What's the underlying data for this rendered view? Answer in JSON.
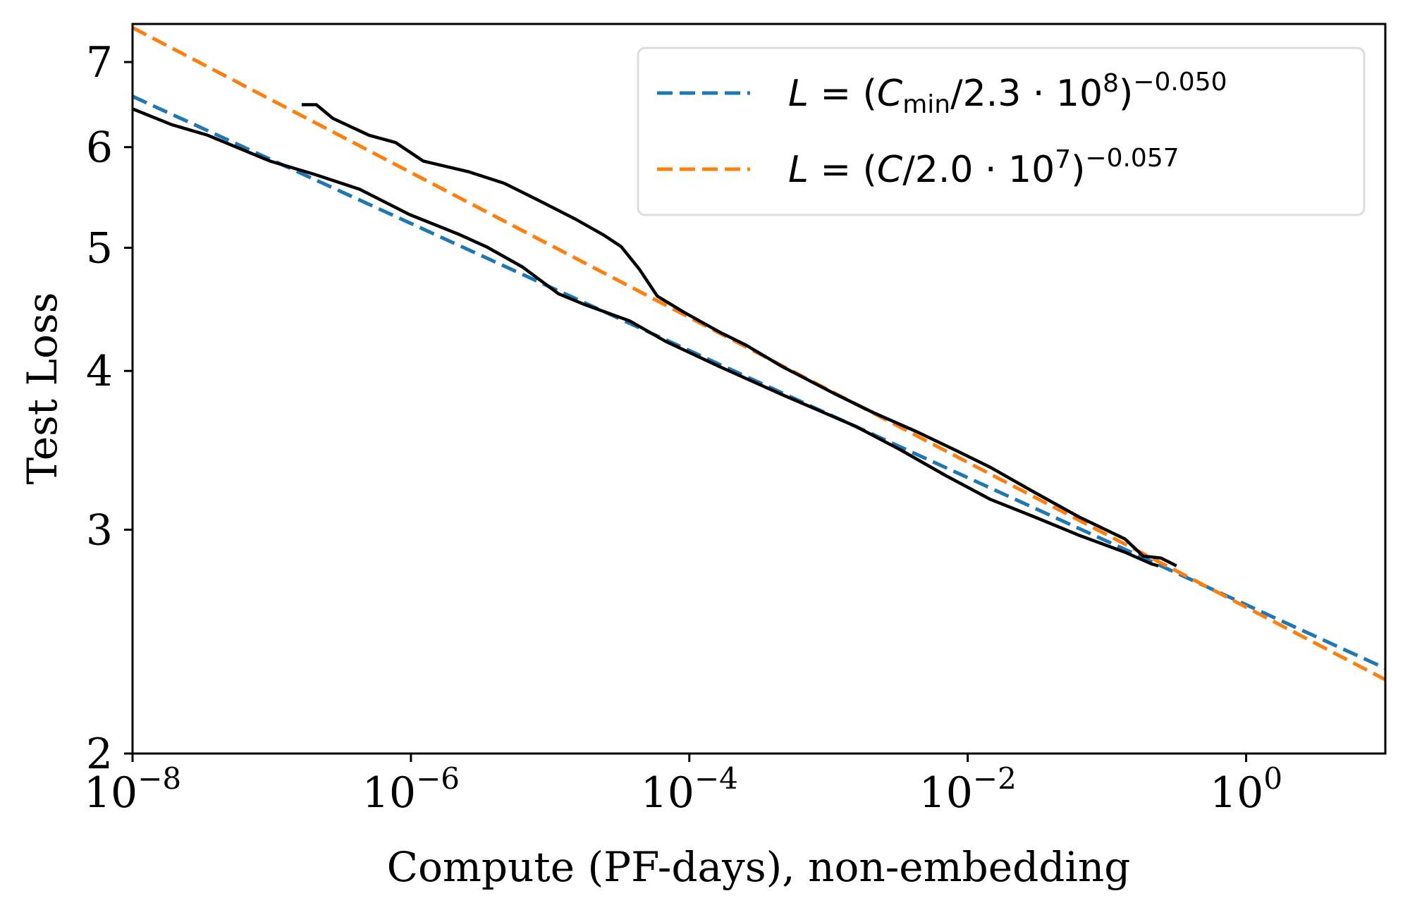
{
  "chart_data": {
    "type": "line",
    "xlabel": "Compute (PF-days), non-embedding",
    "ylabel": "Test Loss",
    "xscale": "log",
    "yscale": "log",
    "xlim": [
      1e-08,
      10
    ],
    "ylim": [
      2,
      7.5
    ],
    "grid": false,
    "legend_position": "top-right",
    "x_ticks": [
      {
        "value": 1e-08,
        "base": "10",
        "exp": "−8"
      },
      {
        "value": 1e-06,
        "base": "10",
        "exp": "−6"
      },
      {
        "value": 0.0001,
        "base": "10",
        "exp": "−4"
      },
      {
        "value": 0.01,
        "base": "10",
        "exp": "−2"
      },
      {
        "value": 1,
        "base": "10",
        "exp": "0"
      }
    ],
    "y_ticks": [
      {
        "value": 2,
        "label": "2"
      },
      {
        "value": 3,
        "label": "3"
      },
      {
        "value": 4,
        "label": "4"
      },
      {
        "value": 5,
        "label": "5"
      },
      {
        "value": 6,
        "label": "6"
      },
      {
        "value": 7,
        "label": "7"
      }
    ],
    "fits": [
      {
        "color": "#1f77b4",
        "style": "dashed",
        "scale": 230000000.0,
        "exponent": -0.05,
        "legend": {
          "lhs": "L",
          "eq": " = (",
          "var": "C",
          "sub": "min",
          "coef": "/2.3 · 10",
          "exp10": "8",
          "close": ")",
          "power": "−0.050"
        }
      },
      {
        "color": "#ff7f0e",
        "style": "dashed",
        "scale": 20000000.0,
        "exponent": -0.057,
        "legend": {
          "lhs": "L",
          "eq": " = (",
          "var": "C",
          "sub": "",
          "coef": "/2.0 · 10",
          "exp10": "7",
          "close": ")",
          "power": "−0.057"
        }
      }
    ],
    "series": [
      {
        "color": "#000000",
        "x": [
          1e-08,
          1.91e-08,
          3.47e-08,
          9.77e-08,
          2.04e-07,
          4.27e-07,
          9.77e-07,
          2.24e-06,
          3.47e-06,
          6.31e-06,
          1.15e-05,
          1.78e-05,
          3.72e-05,
          6.76e-05,
          0.000166,
          0.000468,
          0.00155,
          0.00324,
          0.00692,
          0.0145,
          0.0302,
          0.0631,
          0.135,
          0.209,
          0.234
        ],
        "y": [
          6.43,
          6.25,
          6.13,
          5.85,
          5.71,
          5.56,
          5.31,
          5.12,
          5.01,
          4.83,
          4.6,
          4.51,
          4.38,
          4.22,
          4.03,
          3.83,
          3.62,
          3.47,
          3.31,
          3.17,
          3.07,
          2.97,
          2.88,
          2.82,
          2.81
        ]
      },
      {
        "color": "#000000",
        "x": [
          1.64e-07,
          2.09e-07,
          2.75e-07,
          5.01e-07,
          7.76e-07,
          1.23e-06,
          2.57e-06,
          4.68e-06,
          8.51e-06,
          1.55e-05,
          2.4e-05,
          3.24e-05,
          4.37e-05,
          5.89e-05,
          9.12e-05,
          0.000166,
          0.000257,
          0.000468,
          0.00115,
          0.00209,
          0.00437,
          0.00794,
          0.0145,
          0.0302,
          0.0631,
          0.135,
          0.182,
          0.245,
          0.316
        ],
        "y": [
          6.48,
          6.48,
          6.32,
          6.13,
          6.05,
          5.85,
          5.74,
          5.62,
          5.44,
          5.26,
          5.12,
          5.01,
          4.81,
          4.58,
          4.45,
          4.29,
          4.19,
          4.03,
          3.83,
          3.71,
          3.58,
          3.47,
          3.36,
          3.21,
          3.07,
          2.95,
          2.86,
          2.85,
          2.81
        ]
      }
    ]
  }
}
